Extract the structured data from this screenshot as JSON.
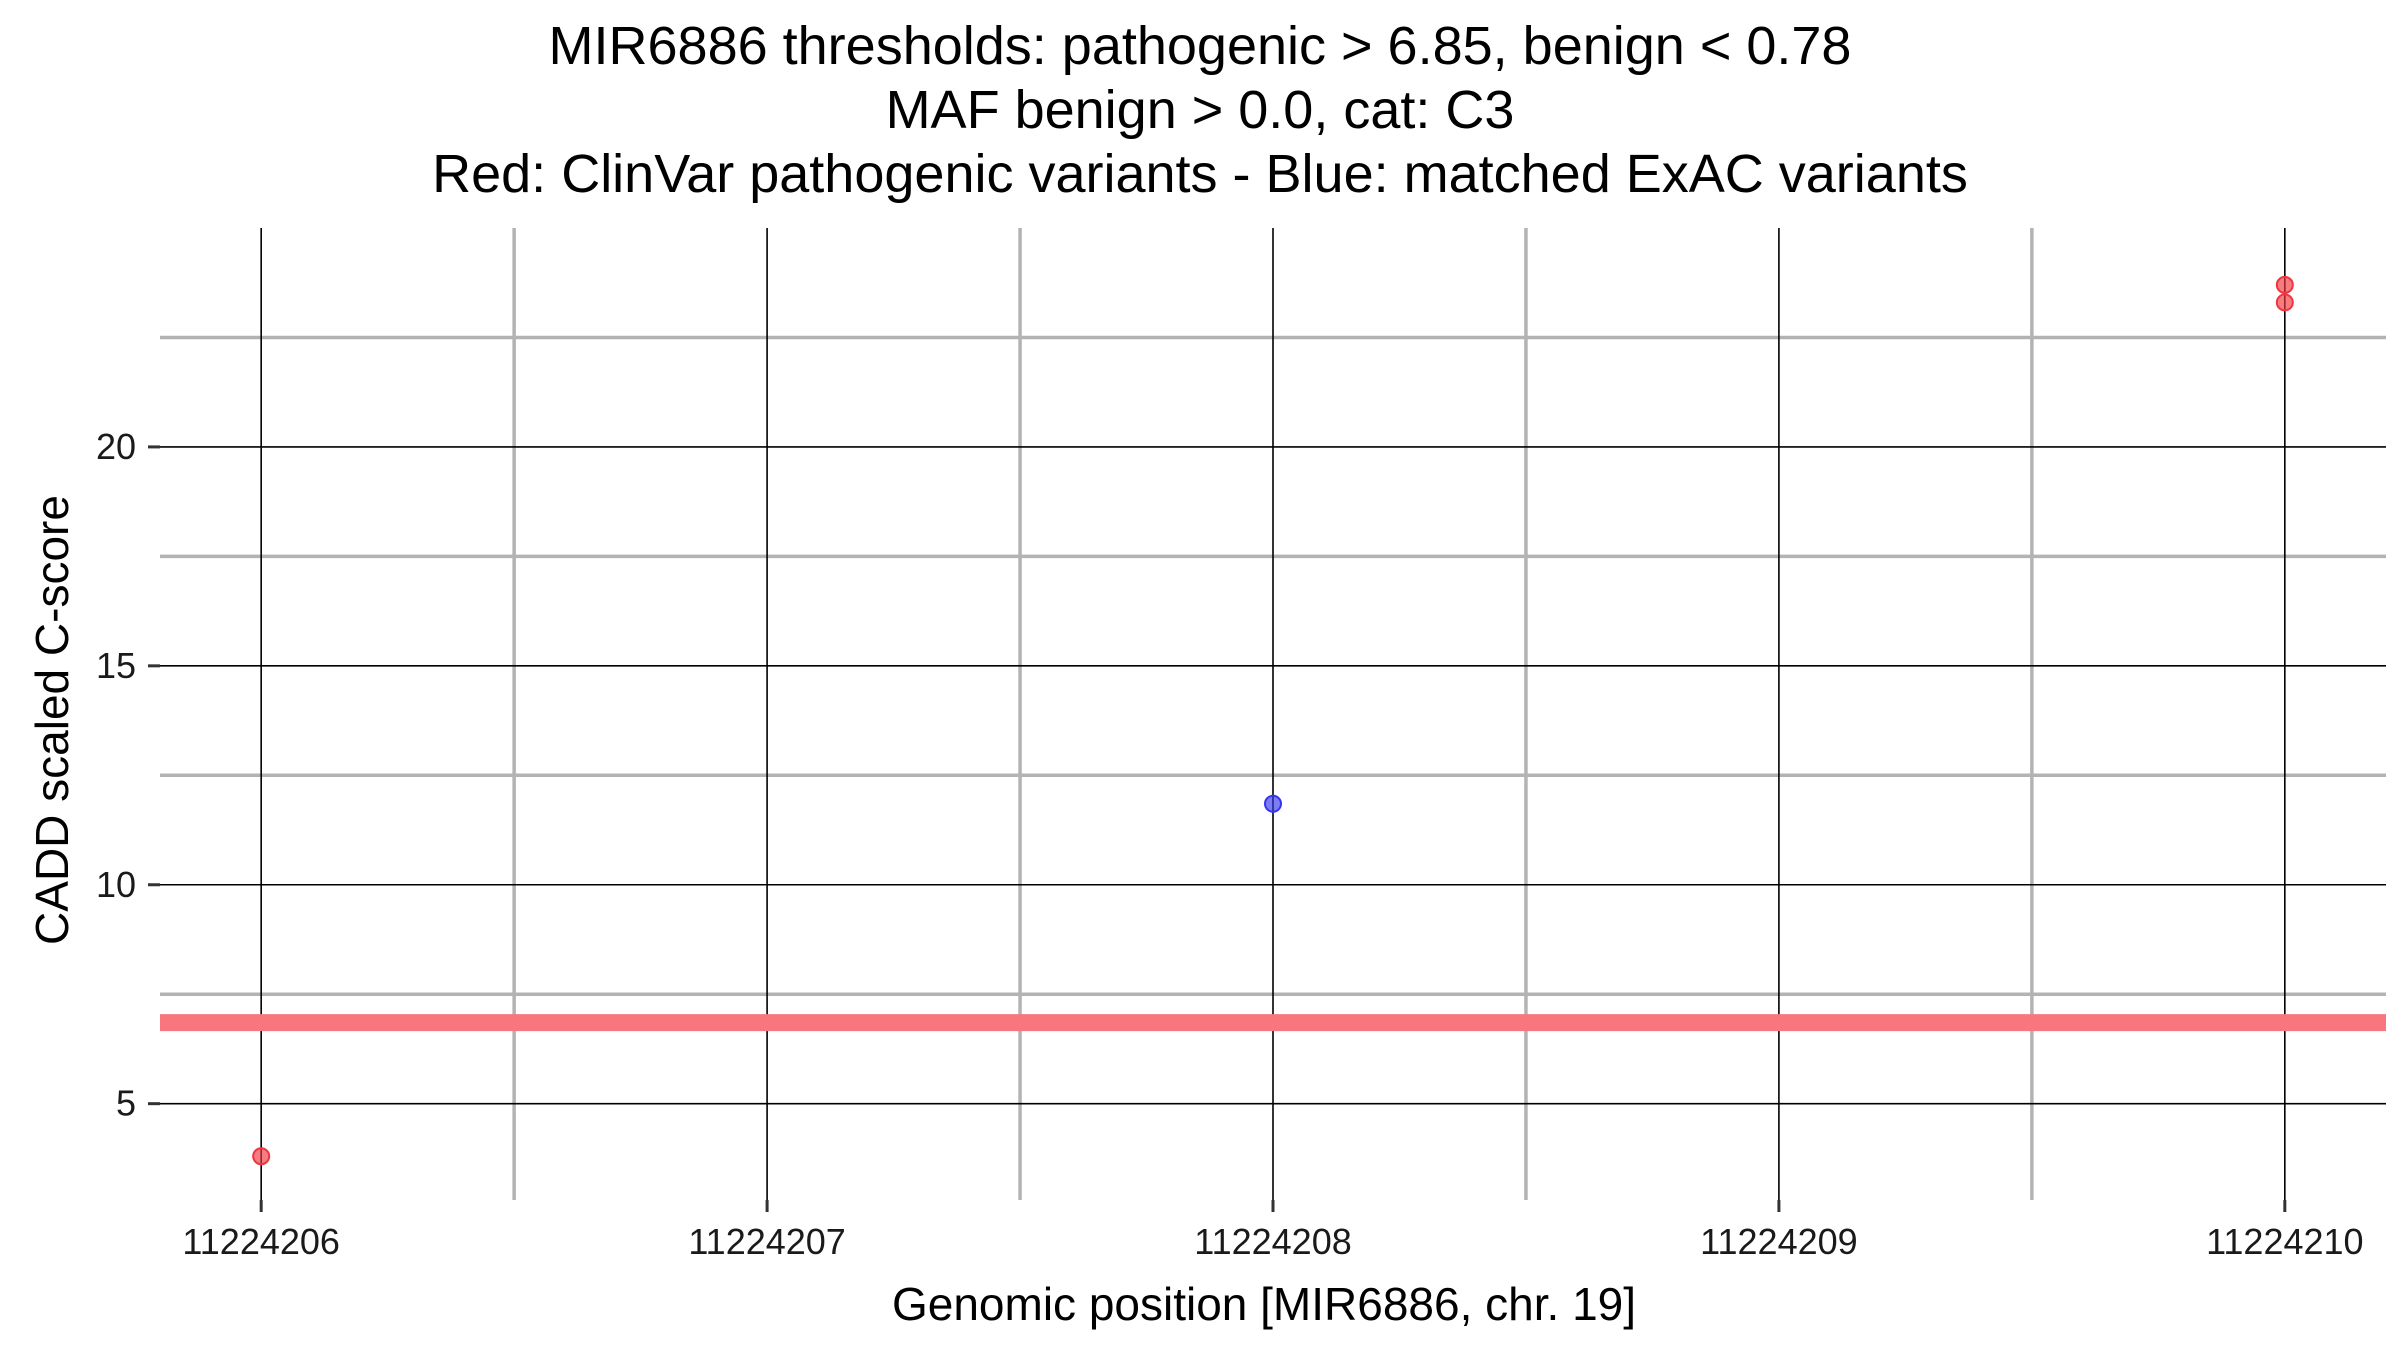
{
  "chart_data": {
    "type": "scatter",
    "title_lines": [
      "MIR6886 thresholds: pathogenic > 6.85, benign < 0.78",
      "MAF benign > 0.0, cat: C3",
      "Red: ClinVar pathogenic variants - Blue: matched ExAC variants"
    ],
    "xlabel": "Genomic position [MIR6886, chr. 19]",
    "ylabel": "CADD scaled C-score",
    "x_ticks": [
      11224206,
      11224207,
      11224208,
      11224209,
      11224210
    ],
    "y_ticks": [
      5,
      10,
      15,
      20
    ],
    "xlim": [
      11224205.8,
      11224210.2
    ],
    "ylim": [
      2.8,
      25
    ],
    "grid": true,
    "threshold_line": {
      "y": 6.85,
      "color": "#f8767d"
    },
    "series": [
      {
        "color": "#f0353e",
        "points": [
          {
            "x": 11224206,
            "y": 3.8
          },
          {
            "x": 11224210,
            "y": 23.3
          },
          {
            "x": 11224210,
            "y": 23.7
          }
        ]
      },
      {
        "color": "#3535f0",
        "points": [
          {
            "x": 11224208,
            "y": 11.85
          }
        ]
      }
    ]
  }
}
